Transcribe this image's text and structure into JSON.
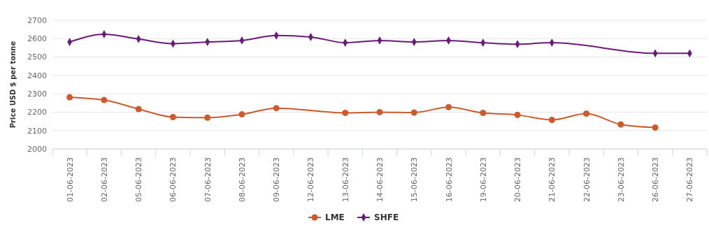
{
  "chart_data": {
    "type": "line",
    "ylabel": "Price USD $ per tonne",
    "categories": [
      "01-06-2023",
      "02-06-2023",
      "05-06-2023",
      "06-06-2023",
      "07-06-2023",
      "08-06-2023",
      "09-06-2023",
      "12-06-2023",
      "13-06-2023",
      "14-06-2023",
      "15-06-2023",
      "16-06-2023",
      "19-06-2023",
      "20-06-2023",
      "21-06-2023",
      "22-06-2023",
      "23-06-2023",
      "26-06-2023",
      "27-06-2023"
    ],
    "series": [
      {
        "name": "LME",
        "color": "#cc5a2c",
        "marker": "circle",
        "values": [
          2281,
          2266,
          2217,
          2173,
          2170,
          2188,
          2222,
          null,
          2196,
          2200,
          2198,
          2227,
          2196,
          2185,
          2158,
          2192,
          2133,
          2116,
          null
        ]
      },
      {
        "name": "SHFE",
        "color": "#6a1a7a",
        "marker": "diamond",
        "values": [
          2582,
          2624,
          2598,
          2573,
          2582,
          2590,
          2617,
          2609,
          2578,
          2590,
          2582,
          2590,
          2578,
          2570,
          2578,
          null,
          null,
          2520,
          2520
        ]
      }
    ],
    "ylim": [
      2000,
      2700
    ],
    "yticks": [
      2000,
      2100,
      2200,
      2300,
      2400,
      2500,
      2600,
      2700
    ],
    "grid": "y",
    "legend": "bottom"
  }
}
